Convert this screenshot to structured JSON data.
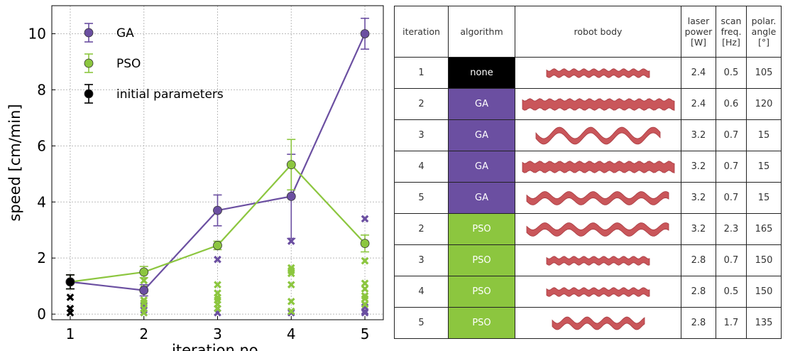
{
  "chart_data": {
    "type": "line",
    "xlabel": "iteration no.",
    "ylabel": "speed [cm/min]",
    "xlim": [
      0.75,
      5.25
    ],
    "ylim": [
      -0.2,
      11
    ],
    "x_ticks": [
      "1",
      "2",
      "3",
      "4",
      "5"
    ],
    "y_ticks": [
      "0",
      "2",
      "4",
      "6",
      "8",
      "10"
    ],
    "grid": true,
    "legend_position": "top-left",
    "series": [
      {
        "name": "GA",
        "color": "#6b4fa1",
        "x": [
          1,
          2,
          3,
          4,
          5
        ],
        "y": [
          1.15,
          0.85,
          3.7,
          4.2,
          10.0
        ],
        "err": [
          0.25,
          0.2,
          0.55,
          1.5,
          0.55
        ],
        "individuals": [
          [],
          [
            0.3,
            0.15,
            0.05
          ],
          [
            1.95,
            0.2,
            0.05
          ],
          [
            2.6,
            0.1,
            0.05
          ],
          [
            3.4,
            0.25,
            0.1,
            0.05
          ]
        ]
      },
      {
        "name": "PSO",
        "color": "#8cc63f",
        "x": [
          1,
          2,
          3,
          4,
          5
        ],
        "y": [
          1.15,
          1.5,
          2.45,
          5.33,
          2.52
        ],
        "err": [
          0.25,
          0.2,
          0.15,
          0.9,
          0.3
        ],
        "individuals": [
          [],
          [
            1.2,
            0.9,
            0.5,
            0.4,
            0.2,
            0.05
          ],
          [
            1.05,
            0.75,
            0.6,
            0.5,
            0.35,
            0.2
          ],
          [
            1.65,
            1.55,
            1.45,
            1.05,
            0.45,
            0.1
          ],
          [
            1.9,
            1.1,
            0.9,
            0.65,
            0.55,
            0.35
          ]
        ]
      },
      {
        "name": "initial parameters",
        "color": "#000000",
        "x": [
          1
        ],
        "y": [
          1.15
        ],
        "err": [
          0.25
        ],
        "individuals": [
          [
            0.6,
            0.2,
            0.05
          ]
        ]
      }
    ]
  },
  "table": {
    "headers": {
      "iteration": "iteration",
      "algorithm": "algorithm",
      "robot_body": "robot body",
      "laser_power": [
        "laser",
        "power",
        "[W]"
      ],
      "scan_freq": [
        "scan",
        "freq.",
        "[Hz]"
      ],
      "polar_angle": [
        "polar.",
        "angle",
        "[°]"
      ]
    },
    "colors": {
      "none": "#000000",
      "GA": "#6b4fa1",
      "PSO": "#8cc63f",
      "body": "#c9565a"
    },
    "rows": [
      {
        "iteration": "1",
        "algorithm": "none",
        "laser_power": "2.4",
        "scan_freq": "0.5",
        "polar_angle": "105",
        "body_shape": "flat-short"
      },
      {
        "iteration": "2",
        "algorithm": "GA",
        "laser_power": "2.4",
        "scan_freq": "0.6",
        "polar_angle": "120",
        "body_shape": "flat-long"
      },
      {
        "iteration": "3",
        "algorithm": "GA",
        "laser_power": "3.2",
        "scan_freq": "0.7",
        "polar_angle": "15",
        "body_shape": "helix"
      },
      {
        "iteration": "4",
        "algorithm": "GA",
        "laser_power": "3.2",
        "scan_freq": "0.7",
        "polar_angle": "15",
        "body_shape": "flat-long"
      },
      {
        "iteration": "5",
        "algorithm": "GA",
        "laser_power": "3.2",
        "scan_freq": "0.7",
        "polar_angle": "15",
        "body_shape": "wavy"
      },
      {
        "iteration": "2",
        "algorithm": "PSO",
        "laser_power": "3.2",
        "scan_freq": "2.3",
        "polar_angle": "165",
        "body_shape": "wavy"
      },
      {
        "iteration": "3",
        "algorithm": "PSO",
        "laser_power": "2.8",
        "scan_freq": "0.7",
        "polar_angle": "150",
        "body_shape": "flat-short"
      },
      {
        "iteration": "4",
        "algorithm": "PSO",
        "laser_power": "2.8",
        "scan_freq": "0.5",
        "polar_angle": "150",
        "body_shape": "flat-short"
      },
      {
        "iteration": "5",
        "algorithm": "PSO",
        "laser_power": "2.8",
        "scan_freq": "1.7",
        "polar_angle": "135",
        "body_shape": "wavy-short"
      }
    ]
  }
}
